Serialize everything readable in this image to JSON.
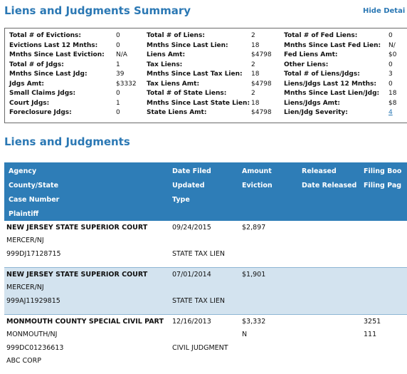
{
  "summary": {
    "title": "Liens and Judgments Summary",
    "hide_link": "Hide Detai",
    "col1": [
      {
        "label": "Total # of Evictions:",
        "value": "0"
      },
      {
        "label": "Evictions Last 12 Mnths:",
        "value": "0"
      },
      {
        "label": "Mnths Since Last Eviction:",
        "value": "N/A"
      },
      {
        "label": "Total # of Jdgs:",
        "value": "1"
      },
      {
        "label": "Mnths Since Last Jdg:",
        "value": "39"
      },
      {
        "label": "Jdgs Amt:",
        "value": "$3332"
      },
      {
        "label": "Small Claims Jdgs:",
        "value": "0"
      },
      {
        "label": "Court Jdgs:",
        "value": "1"
      },
      {
        "label": "Foreclosure Jdgs:",
        "value": "0"
      }
    ],
    "col2": [
      {
        "label": "Total # of Liens:",
        "value": "2"
      },
      {
        "label": "Mnths Since Last Lien:",
        "value": "18"
      },
      {
        "label": "Liens Amt:",
        "value": "$4798"
      },
      {
        "label": "Tax Liens:",
        "value": "2"
      },
      {
        "label": "Mnths Since Last Tax Lien:",
        "value": "18"
      },
      {
        "label": "Tax Liens Amt:",
        "value": "$4798"
      },
      {
        "label": "Total # of State Liens:",
        "value": "2"
      },
      {
        "label": "Mnths Since Last State Lien:",
        "value": "18"
      },
      {
        "label": "State Liens Amt:",
        "value": "$4798"
      }
    ],
    "col3": [
      {
        "label": "Total # of Fed Liens:",
        "value": "0"
      },
      {
        "label": "Mnths Since Last Fed Lien:",
        "value": "N/"
      },
      {
        "label": "Fed Liens Amt:",
        "value": "$0"
      },
      {
        "label": "Other Liens:",
        "value": "0"
      },
      {
        "label": "Total # of Liens/Jdgs:",
        "value": "3"
      },
      {
        "label": "Liens/Jdgs Last 12 Mnths:",
        "value": "0"
      },
      {
        "label": "Mnths Since Last Lien/Jdg:",
        "value": "18"
      },
      {
        "label": "Liens/Jdgs Amt:",
        "value": "$8"
      },
      {
        "label": "Lien/Jdg Severity:",
        "value": "4"
      }
    ]
  },
  "liens": {
    "title": "Liens and Judgments",
    "headers": {
      "agency": "Agency",
      "county_state": "County/State",
      "case_number": "Case Number",
      "plaintiff": "Plaintiff",
      "date_filed": "Date Filed",
      "updated": "Updated",
      "type": "Type",
      "amount": "Amount",
      "eviction": "Eviction",
      "released": "Released",
      "date_released": "Date Released",
      "filing_book": "Filing Boo",
      "filing_page": "Filing Pag"
    },
    "records": [
      {
        "agency": "NEW JERSEY STATE SUPERIOR COURT",
        "county_state": "MERCER/NJ",
        "case_number": "999DJ17128715",
        "plaintiff": "",
        "date_filed": "09/24/2015",
        "type": "STATE TAX LIEN",
        "amount": "$2,897",
        "eviction": "",
        "filing_book": "",
        "filing_page": ""
      },
      {
        "agency": "NEW JERSEY STATE SUPERIOR COURT",
        "county_state": "MERCER/NJ",
        "case_number": "999AJ11929815",
        "plaintiff": "",
        "date_filed": "07/01/2014",
        "type": "STATE TAX LIEN",
        "amount": "$1,901",
        "eviction": "",
        "filing_book": "",
        "filing_page": ""
      },
      {
        "agency": "MONMOUTH COUNTY SPECIAL CIVIL PART",
        "county_state": "MONMOUTH/NJ",
        "case_number": "999DC01236613",
        "plaintiff": "ABC CORP",
        "date_filed": "12/16/2013",
        "type": "CIVIL JUDGMENT",
        "amount": "$3,332",
        "eviction": "N",
        "filing_book": "3251",
        "filing_page": "111"
      }
    ]
  }
}
